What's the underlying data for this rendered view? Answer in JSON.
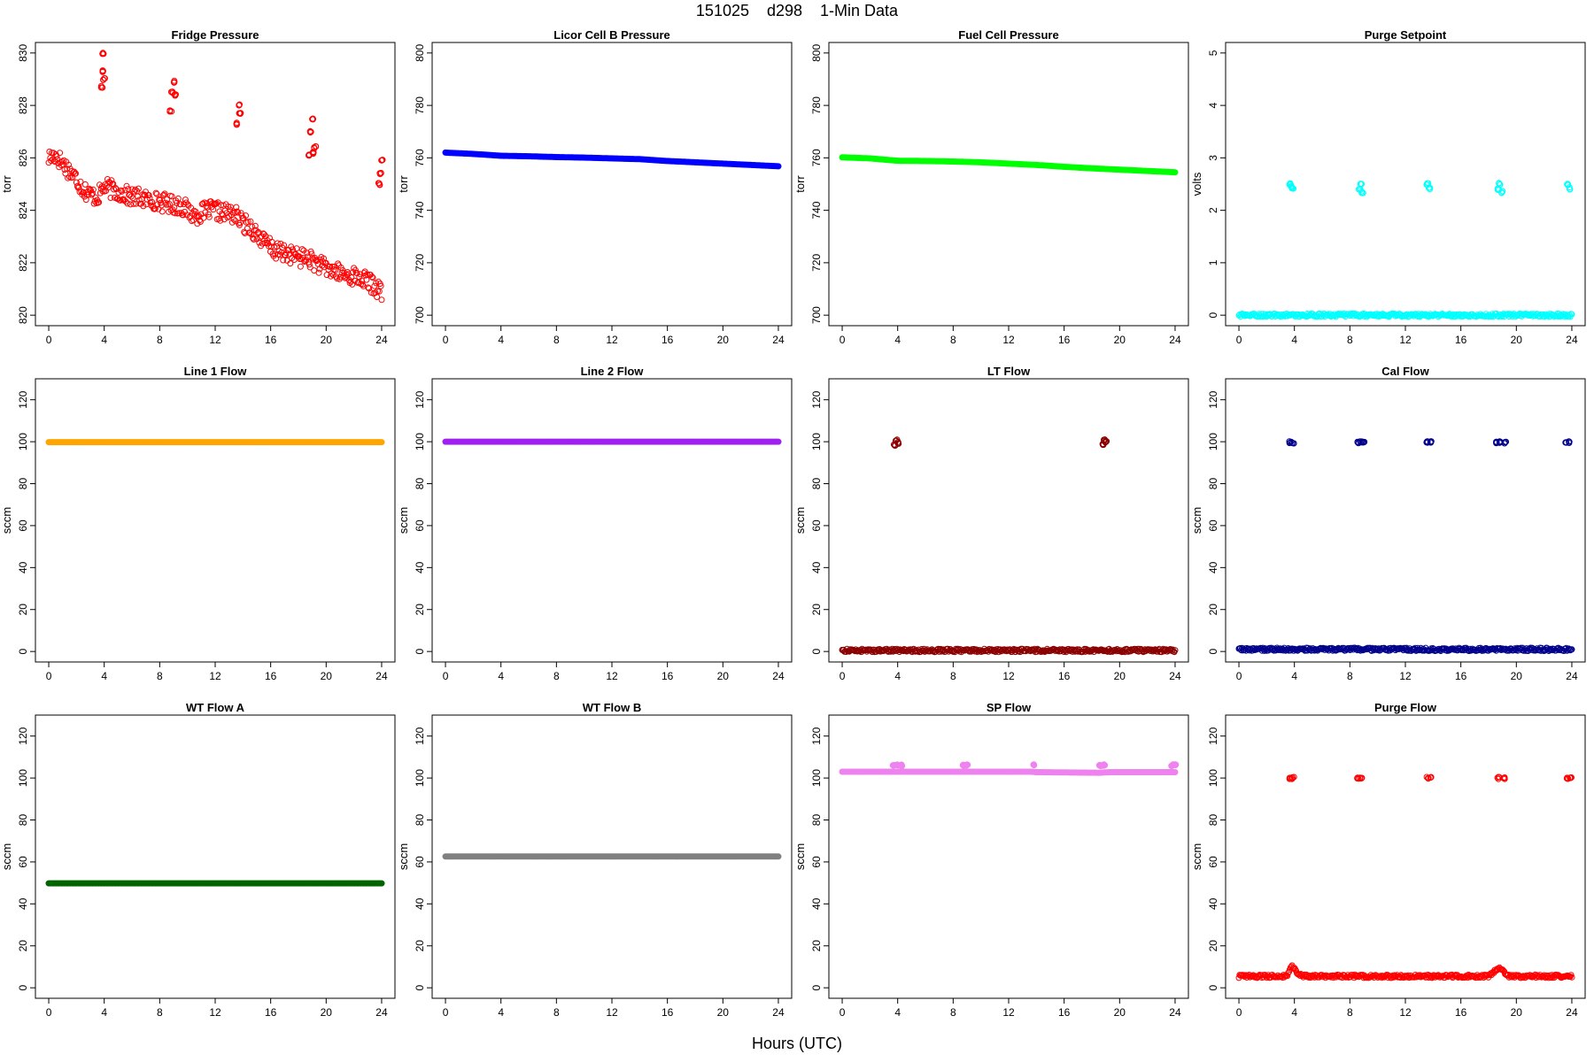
{
  "page": {
    "title": "151025    d298    1-Min Data",
    "x_axis_title": "Hours (UTC)"
  },
  "chart_data": [
    {
      "type": "scatter",
      "title": "Fridge Pressure",
      "ylabel": "torr",
      "xlim": [
        0,
        24
      ],
      "ylim": [
        820,
        830
      ],
      "xticks": [
        0,
        4,
        8,
        12,
        16,
        20,
        24
      ],
      "yticks": [
        820,
        822,
        824,
        826,
        828,
        830
      ],
      "color": "#ff0000",
      "marker": "open-circle",
      "series": [
        {
          "name": "",
          "x": [
            0.0,
            0.5,
            1.0,
            1.5,
            2.0,
            2.5,
            3.0,
            3.5,
            4.0,
            4.5,
            5.0,
            5.5,
            6.0,
            6.5,
            7.0,
            7.5,
            8.0,
            8.5,
            9.0,
            9.5,
            10.0,
            10.5,
            11.0,
            11.5,
            12.0,
            12.5,
            13.0,
            13.5,
            14.0,
            14.5,
            15.0,
            15.5,
            16.0,
            16.5,
            17.0,
            17.5,
            18.0,
            18.5,
            19.0,
            19.5,
            20.0,
            20.5,
            21.0,
            21.5,
            22.0,
            22.5,
            23.0,
            23.5,
            24.0
          ],
          "y": [
            826.0,
            826.1,
            825.8,
            825.5,
            825.2,
            824.8,
            824.6,
            824.5,
            824.9,
            824.8,
            824.7,
            824.6,
            824.5,
            824.5,
            824.4,
            824.4,
            824.3,
            824.3,
            824.2,
            824.2,
            824.0,
            823.8,
            823.9,
            824.0,
            824.0,
            823.9,
            823.9,
            823.8,
            823.5,
            823.4,
            823.1,
            822.8,
            822.6,
            822.4,
            822.4,
            822.3,
            822.2,
            822.2,
            822.1,
            821.9,
            821.8,
            821.7,
            821.6,
            821.5,
            821.5,
            821.4,
            821.3,
            821.1,
            820.9
          ]
        },
        {
          "name": "",
          "x": [
            3.8,
            3.9,
            3.9,
            4.0,
            8.8,
            8.9,
            9.0,
            9.1,
            13.6,
            13.7,
            13.8,
            18.8,
            18.9,
            19.0,
            19.1,
            19.2,
            23.8,
            23.9,
            24.0
          ],
          "y": [
            828.7,
            829.3,
            830.0,
            829.0,
            827.8,
            828.5,
            828.9,
            828.4,
            827.3,
            828.0,
            827.7,
            826.1,
            827.0,
            827.5,
            826.2,
            826.4,
            825.0,
            825.4,
            825.9
          ]
        }
      ]
    },
    {
      "type": "scatter",
      "title": "Licor Cell B Pressure",
      "ylabel": "torr",
      "xlim": [
        0,
        24
      ],
      "ylim": [
        700,
        800
      ],
      "xticks": [
        0,
        4,
        8,
        12,
        16,
        20,
        24
      ],
      "yticks": [
        700,
        720,
        740,
        760,
        780,
        800
      ],
      "color": "#0000ff",
      "marker": "filled-band",
      "series": [
        {
          "name": "",
          "x": [
            0,
            2,
            4,
            6,
            8,
            10,
            12,
            14,
            16,
            18,
            20,
            22,
            24
          ],
          "y": [
            762.0,
            761.5,
            760.8,
            760.6,
            760.3,
            760.1,
            759.8,
            759.5,
            758.8,
            758.3,
            757.8,
            757.3,
            756.8
          ]
        }
      ]
    },
    {
      "type": "scatter",
      "title": "Fuel Cell Pressure",
      "ylabel": "torr",
      "xlim": [
        0,
        24
      ],
      "ylim": [
        700,
        800
      ],
      "xticks": [
        0,
        4,
        8,
        12,
        16,
        20,
        24
      ],
      "yticks": [
        700,
        720,
        740,
        760,
        780,
        800
      ],
      "color": "#00ff00",
      "marker": "filled-band",
      "series": [
        {
          "name": "",
          "x": [
            0,
            2,
            4,
            6,
            8,
            10,
            12,
            14,
            16,
            18,
            20,
            22,
            24
          ],
          "y": [
            760.2,
            759.8,
            758.9,
            758.8,
            758.6,
            758.3,
            757.8,
            757.3,
            756.6,
            756.0,
            755.5,
            755.0,
            754.5
          ]
        }
      ]
    },
    {
      "type": "scatter",
      "title": "Purge Setpoint",
      "ylabel": "volts",
      "xlim": [
        0,
        24
      ],
      "ylim": [
        0,
        5
      ],
      "xticks": [
        0,
        4,
        8,
        12,
        16,
        20,
        24
      ],
      "yticks": [
        0,
        1,
        2,
        3,
        4,
        5
      ],
      "color": "#00ffff",
      "marker": "open-circle",
      "series": [
        {
          "name": "",
          "x": [
            0,
            2,
            4,
            6,
            8,
            10,
            12,
            14,
            16,
            18,
            20,
            22,
            24
          ],
          "y": [
            0,
            0,
            0,
            0,
            0,
            0,
            0,
            0,
            0,
            0,
            0,
            0,
            0
          ]
        },
        {
          "name": "",
          "x": [
            3.7,
            3.8,
            3.9,
            8.7,
            8.8,
            8.9,
            13.6,
            13.7,
            18.7,
            18.8,
            19.0,
            23.7,
            23.8
          ],
          "y": [
            2.5,
            2.45,
            2.42,
            2.4,
            2.5,
            2.35,
            2.5,
            2.42,
            2.4,
            2.5,
            2.35,
            2.5,
            2.42
          ]
        }
      ]
    },
    {
      "type": "scatter",
      "title": "Line 1 Flow",
      "ylabel": "sccm",
      "xlim": [
        0,
        24
      ],
      "ylim": [
        0,
        125
      ],
      "xticks": [
        0,
        4,
        8,
        12,
        16,
        20,
        24
      ],
      "yticks": [
        0,
        20,
        40,
        60,
        80,
        100,
        120
      ],
      "color": "#ffa500",
      "marker": "filled-band",
      "series": [
        {
          "name": "",
          "x": [
            0,
            4,
            8,
            12,
            16,
            20,
            24
          ],
          "y": [
            99.8,
            99.8,
            99.8,
            99.8,
            99.8,
            99.8,
            99.8
          ]
        }
      ]
    },
    {
      "type": "scatter",
      "title": "Line 2 Flow",
      "ylabel": "sccm",
      "xlim": [
        0,
        24
      ],
      "ylim": [
        0,
        125
      ],
      "xticks": [
        0,
        4,
        8,
        12,
        16,
        20,
        24
      ],
      "yticks": [
        0,
        20,
        40,
        60,
        80,
        100,
        120
      ],
      "color": "#a020f0",
      "marker": "filled-band",
      "series": [
        {
          "name": "",
          "x": [
            0,
            4,
            8,
            12,
            16,
            20,
            24
          ],
          "y": [
            100.0,
            100.0,
            100.0,
            100.0,
            100.0,
            100.0,
            100.0
          ]
        }
      ]
    },
    {
      "type": "scatter",
      "title": "LT Flow",
      "ylabel": "sccm",
      "xlim": [
        0,
        24
      ],
      "ylim": [
        0,
        125
      ],
      "xticks": [
        0,
        4,
        8,
        12,
        16,
        20,
        24
      ],
      "yticks": [
        0,
        20,
        40,
        60,
        80,
        100,
        120
      ],
      "color": "#8b0000",
      "marker": "open-circle",
      "series": [
        {
          "name": "",
          "x": [
            0,
            2,
            4,
            6,
            8,
            10,
            12,
            14,
            16,
            18,
            20,
            22,
            24
          ],
          "y": [
            0.5,
            0.5,
            0.5,
            0.5,
            0.5,
            0.5,
            0.5,
            0.5,
            0.5,
            0.5,
            0.5,
            0.5,
            0.5
          ]
        },
        {
          "name": "",
          "x": [
            3.8,
            3.9,
            4.0,
            18.8,
            18.9,
            19.0
          ],
          "y": [
            98.5,
            100.5,
            99.5,
            98.8,
            100.8,
            99.8
          ]
        }
      ]
    },
    {
      "type": "scatter",
      "title": "Cal Flow",
      "ylabel": "sccm",
      "xlim": [
        0,
        24
      ],
      "ylim": [
        0,
        125
      ],
      "xticks": [
        0,
        4,
        8,
        12,
        16,
        20,
        24
      ],
      "yticks": [
        0,
        20,
        40,
        60,
        80,
        100,
        120
      ],
      "color": "#00008b",
      "marker": "open-circle",
      "series": [
        {
          "name": "",
          "x": [
            0,
            2,
            4,
            6,
            8,
            10,
            12,
            14,
            16,
            18,
            20,
            22,
            24
          ],
          "y": [
            1.0,
            1.0,
            1.0,
            1.0,
            1.0,
            1.0,
            1.0,
            1.0,
            1.0,
            1.0,
            1.0,
            1.0,
            1.0
          ]
        },
        {
          "name": "",
          "x": [
            3.7,
            3.9,
            8.6,
            8.8,
            9.0,
            13.6,
            13.8,
            18.6,
            18.8,
            19.2,
            23.6,
            23.8
          ],
          "y": [
            99.7,
            99.7,
            99.7,
            99.7,
            99.7,
            99.7,
            99.7,
            99.7,
            99.7,
            99.7,
            99.7,
            99.7
          ]
        }
      ]
    },
    {
      "type": "scatter",
      "title": "WT Flow A",
      "ylabel": "sccm",
      "xlim": [
        0,
        24
      ],
      "ylim": [
        0,
        125
      ],
      "xticks": [
        0,
        4,
        8,
        12,
        16,
        20,
        24
      ],
      "yticks": [
        0,
        20,
        40,
        60,
        80,
        100,
        120
      ],
      "color": "#006400",
      "marker": "filled-band",
      "series": [
        {
          "name": "",
          "x": [
            0,
            4,
            8,
            12,
            16,
            20,
            24
          ],
          "y": [
            49.8,
            49.8,
            49.8,
            49.8,
            49.8,
            49.8,
            49.8
          ]
        }
      ]
    },
    {
      "type": "scatter",
      "title": "WT Flow B",
      "ylabel": "sccm",
      "xlim": [
        0,
        24
      ],
      "ylim": [
        0,
        125
      ],
      "xticks": [
        0,
        4,
        8,
        12,
        16,
        20,
        24
      ],
      "yticks": [
        0,
        20,
        40,
        60,
        80,
        100,
        120
      ],
      "color": "#808080",
      "marker": "filled-band",
      "series": [
        {
          "name": "",
          "x": [
            0,
            4,
            8,
            12,
            16,
            20,
            24
          ],
          "y": [
            62.6,
            62.6,
            62.6,
            62.6,
            62.6,
            62.6,
            62.6
          ]
        }
      ]
    },
    {
      "type": "scatter",
      "title": "SP Flow",
      "ylabel": "sccm",
      "xlim": [
        0,
        24
      ],
      "ylim": [
        0,
        125
      ],
      "xticks": [
        0,
        4,
        8,
        12,
        16,
        20,
        24
      ],
      "yticks": [
        0,
        20,
        40,
        60,
        80,
        100,
        120
      ],
      "color": "#ee82ee",
      "marker": "filled-band",
      "series": [
        {
          "name": "",
          "x": [
            0,
            3.6,
            4.4,
            8.6,
            9.2,
            13.6,
            14.0,
            18.5,
            19.3,
            23.6
          ],
          "y": [
            103.0,
            103.0,
            103.0,
            103.0,
            103.0,
            103.0,
            102.8,
            102.5,
            102.8,
            102.8
          ]
        },
        {
          "name": "",
          "x": [
            3.7,
            4.0,
            4.3,
            8.7,
            9.0,
            13.8,
            18.6,
            18.9,
            23.8,
            24.0
          ],
          "y": [
            106.0,
            106.0,
            106.0,
            106.0,
            106.0,
            106.0,
            106.0,
            106.0,
            106.0,
            106.0
          ]
        }
      ]
    },
    {
      "type": "scatter",
      "title": "Purge Flow",
      "ylabel": "sccm",
      "xlim": [
        0,
        24
      ],
      "ylim": [
        0,
        125
      ],
      "xticks": [
        0,
        4,
        8,
        12,
        16,
        20,
        24
      ],
      "yticks": [
        0,
        20,
        40,
        60,
        80,
        100,
        120
      ],
      "color": "#ff0000",
      "marker": "open-circle",
      "series": [
        {
          "name": "",
          "x": [
            0,
            1,
            2,
            3,
            3.5,
            3.8,
            4.0,
            4.3,
            5,
            6,
            7,
            8,
            9,
            10,
            11,
            12,
            13,
            14,
            15,
            16,
            17,
            18,
            18.8,
            19.0,
            19.4,
            20,
            21,
            22,
            23,
            24
          ],
          "y": [
            5.5,
            5.5,
            5.5,
            5.5,
            5.5,
            10.5,
            9.0,
            6.0,
            5.5,
            5.5,
            5.5,
            5.5,
            5.5,
            5.5,
            5.5,
            5.5,
            5.5,
            5.5,
            5.5,
            5.5,
            5.5,
            5.5,
            10.0,
            8.0,
            5.5,
            5.5,
            5.5,
            5.5,
            5.5,
            5.5
          ]
        },
        {
          "name": "",
          "x": [
            3.7,
            3.9,
            8.6,
            8.8,
            13.6,
            13.8,
            18.7,
            19.1,
            23.7,
            23.9
          ],
          "y": [
            100.0,
            100.0,
            100.0,
            100.0,
            100.0,
            100.0,
            100.0,
            100.0,
            100.0,
            100.0
          ]
        }
      ]
    }
  ]
}
